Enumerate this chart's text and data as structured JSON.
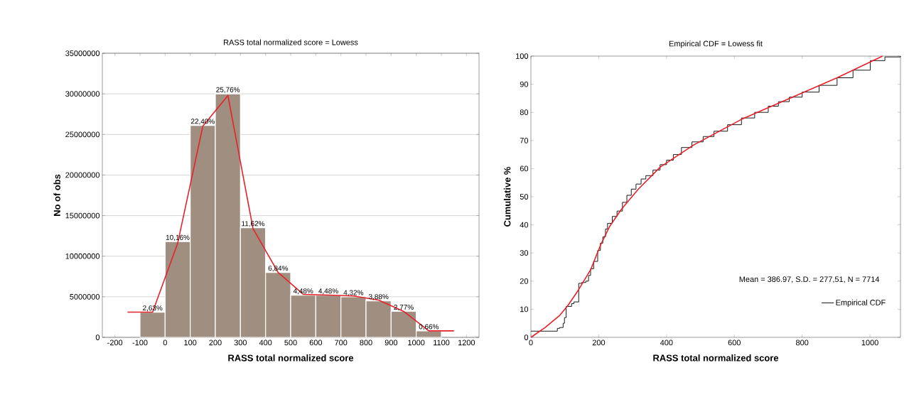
{
  "chart_data": [
    {
      "type": "histogram",
      "title": "RASS total normalized score = Lowess",
      "xlabel": "RASS total normalized score",
      "ylabel": "No of obs",
      "series": [
        {
          "bins": [
            -100,
            0,
            100,
            200,
            300,
            400,
            500,
            600,
            700,
            800,
            900,
            1000,
            1100
          ],
          "values": [
            3100000,
            11800000,
            26100000,
            30000000,
            13500000,
            8000000,
            5200000,
            5200000,
            5000000,
            4500000,
            3200000,
            800000
          ],
          "color": "#a08f80"
        },
        {
          "type": "line",
          "x": [
            -150,
            -50,
            50,
            150,
            250,
            350,
            450,
            550,
            650,
            750,
            850,
            950,
            1050,
            1150
          ],
          "values": [
            3100000,
            3100000,
            11600000,
            26000000,
            29800000,
            13400000,
            8000000,
            5300000,
            5200000,
            5100000,
            4600000,
            3200000,
            800000,
            800000
          ],
          "color": "#e8202a"
        }
      ],
      "xlim": [
        -250,
        1250
      ],
      "ylim": [
        0,
        35000000
      ],
      "xticks": [
        -200,
        -100,
        0,
        100,
        200,
        300,
        400,
        500,
        600,
        700,
        800,
        900,
        1000,
        1100,
        1200
      ],
      "yticks": [
        0,
        5000000,
        10000000,
        15000000,
        20000000,
        25000000,
        30000000,
        35000000
      ],
      "grid": "y",
      "annotations": [
        {
          "text": "2,63%",
          "x": -50,
          "y": 3100000
        },
        {
          "text": "10,16%",
          "x": 50,
          "y": 11800000
        },
        {
          "text": "22,40%",
          "x": 150,
          "y": 26100000
        },
        {
          "text": "25,76%",
          "x": 250,
          "y": 30000000
        },
        {
          "text": "11,62%",
          "x": 350,
          "y": 13500000
        },
        {
          "text": "6,84%",
          "x": 450,
          "y": 8000000
        },
        {
          "text": "4,48%",
          "x": 550,
          "y": 5200000
        },
        {
          "text": "4,48%",
          "x": 650,
          "y": 5200000
        },
        {
          "text": "4,32%",
          "x": 750,
          "y": 5000000
        },
        {
          "text": "3,88%",
          "x": 850,
          "y": 4500000
        },
        {
          "text": "2,77%",
          "x": 950,
          "y": 3200000
        },
        {
          "text": "0,66%",
          "x": 1050,
          "y": 800000
        }
      ]
    },
    {
      "type": "line",
      "title": "Empirical CDF = Lowess fit",
      "xlabel": "RASS total normalized score",
      "ylabel": "Cumulative %",
      "series": [
        {
          "type": "step",
          "name": "Empirical CDF",
          "color": "#1a1a1a",
          "x": [
            0,
            78,
            85,
            95,
            99,
            104,
            120,
            127,
            141,
            150,
            162,
            170,
            176,
            185,
            197,
            205,
            212,
            220,
            226,
            240,
            254,
            270,
            283,
            296,
            310,
            325,
            339,
            360,
            381,
            400,
            420,
            444,
            475,
            508,
            540,
            580,
            621,
            660,
            700,
            730,
            762,
            800,
            850,
            903,
            950,
            1001,
            1044,
            1090
          ],
          "values": [
            2.2,
            3.2,
            3.5,
            5,
            7,
            11,
            12,
            12.6,
            19.2,
            19.5,
            20,
            22,
            24.4,
            27,
            30.9,
            33.5,
            35.7,
            38.5,
            40.5,
            43,
            44.9,
            48,
            50.5,
            52.7,
            54.5,
            56.3,
            57.5,
            59.5,
            61.4,
            63,
            65,
            67.5,
            69.5,
            71.4,
            73.3,
            75.6,
            78,
            80,
            82.2,
            83.8,
            85.4,
            87.2,
            89.6,
            92.3,
            95,
            98.4,
            99.7,
            100
          ]
        },
        {
          "color": "#e8202a",
          "x": [
            0,
            42,
            85,
            109,
            141,
            176,
            205,
            233,
            268,
            317,
            381,
            480,
            621,
            762,
            903,
            1037
          ],
          "values": [
            0,
            3.5,
            7.8,
            11.3,
            17,
            24,
            32.7,
            39.6,
            45.7,
            52.7,
            60.5,
            68.4,
            77.5,
            84.9,
            92.3,
            100
          ]
        }
      ],
      "xlim": [
        0,
        1090
      ],
      "ylim": [
        0,
        100
      ],
      "xticks": [
        0,
        200,
        400,
        600,
        800,
        1000
      ],
      "yticks": [
        0,
        10,
        20,
        30,
        40,
        50,
        60,
        70,
        80,
        90,
        100
      ],
      "legend": "bottom right",
      "annotations": [
        "Mean = 386.97, S.D. = 277,51, N = 7714"
      ]
    }
  ]
}
